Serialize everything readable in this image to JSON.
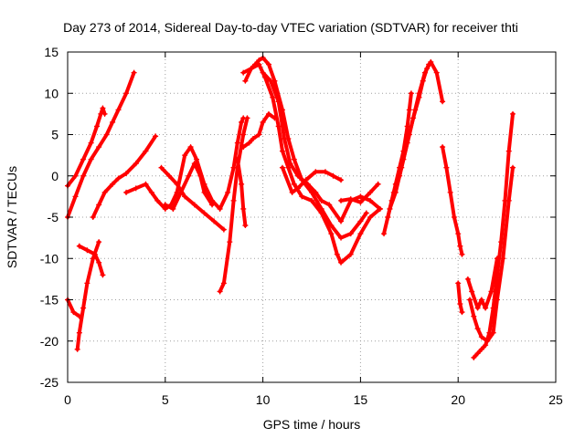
{
  "chart_data": {
    "type": "scatter",
    "title": "Day 273 of 2014, Sidereal Day-to-day VTEC variation (SDTVAR) for receiver thti",
    "xlabel": "GPS time / hours",
    "ylabel": "SDTVAR / TECUs",
    "xlim": [
      0,
      25
    ],
    "ylim": [
      -25,
      15
    ],
    "xticks": [
      0,
      5,
      10,
      15,
      20,
      25
    ],
    "yticks": [
      -25,
      -20,
      -15,
      -10,
      -5,
      0,
      5,
      10,
      15
    ],
    "grid": true,
    "marker": "plus",
    "color": "#ff0000",
    "tracks": [
      [
        [
          0.0,
          -1.2
        ],
        [
          0.4,
          0.0
        ],
        [
          0.8,
          2.0
        ],
        [
          1.2,
          4.0
        ],
        [
          1.5,
          6.0
        ],
        [
          1.7,
          7.5
        ],
        [
          1.8,
          8.2
        ],
        [
          1.9,
          7.5
        ]
      ],
      [
        [
          0.0,
          -5.0
        ],
        [
          0.4,
          -2.5
        ],
        [
          0.8,
          0.0
        ],
        [
          1.2,
          2.0
        ],
        [
          1.6,
          3.5
        ],
        [
          2.0,
          5.0
        ],
        [
          2.3,
          6.5
        ],
        [
          2.6,
          8.0
        ],
        [
          3.0,
          10.0
        ],
        [
          3.4,
          12.5
        ]
      ],
      [
        [
          0.0,
          -15.0
        ],
        [
          0.3,
          -16.5
        ],
        [
          0.6,
          -17.0
        ]
      ],
      [
        [
          0.5,
          -21.0
        ],
        [
          0.6,
          -19.0
        ],
        [
          0.8,
          -16.0
        ],
        [
          1.0,
          -13.0
        ],
        [
          1.3,
          -10.0
        ],
        [
          1.6,
          -8.0
        ]
      ],
      [
        [
          0.6,
          -8.5
        ],
        [
          1.0,
          -9.0
        ],
        [
          1.4,
          -9.5
        ],
        [
          1.6,
          -10.5
        ],
        [
          1.8,
          -12.0
        ]
      ],
      [
        [
          1.3,
          -5.0
        ],
        [
          1.6,
          -3.5
        ],
        [
          1.9,
          -2.0
        ],
        [
          2.3,
          -1.0
        ],
        [
          2.6,
          -0.3
        ],
        [
          3.0,
          0.3
        ],
        [
          3.5,
          1.5
        ],
        [
          4.0,
          3.0
        ],
        [
          4.5,
          4.8
        ]
      ],
      [
        [
          3.0,
          -2.0
        ],
        [
          3.5,
          -1.5
        ],
        [
          4.0,
          -1.0
        ],
        [
          4.3,
          -2.0
        ],
        [
          4.6,
          -3.0
        ],
        [
          5.0,
          -4.0
        ],
        [
          5.3,
          -3.5
        ],
        [
          5.6,
          -2.0
        ],
        [
          6.0,
          2.5
        ],
        [
          6.3,
          3.5
        ],
        [
          6.6,
          2.0
        ],
        [
          7.0,
          -1.0
        ],
        [
          7.4,
          -3.0
        ],
        [
          7.8,
          -4.0
        ],
        [
          8.2,
          -2.0
        ],
        [
          8.5,
          1.0
        ],
        [
          8.7,
          4.0
        ],
        [
          8.9,
          6.5
        ],
        [
          9.0,
          7.0
        ]
      ],
      [
        [
          4.8,
          1.0
        ],
        [
          5.2,
          0.0
        ],
        [
          5.6,
          -1.0
        ],
        [
          6.0,
          -2.5
        ],
        [
          6.5,
          -3.5
        ],
        [
          7.0,
          -4.5
        ],
        [
          7.5,
          -5.5
        ],
        [
          8.0,
          -6.5
        ]
      ],
      [
        [
          5.0,
          -3.5
        ],
        [
          5.4,
          -4.0
        ],
        [
          5.8,
          -2.0
        ],
        [
          6.2,
          0.0
        ],
        [
          6.5,
          1.5
        ],
        [
          6.8,
          0.0
        ],
        [
          7.0,
          -2.0
        ],
        [
          7.4,
          -3.5
        ]
      ],
      [
        [
          7.8,
          -14.0
        ],
        [
          8.0,
          -13.0
        ],
        [
          8.3,
          -8.0
        ],
        [
          8.5,
          -3.0
        ],
        [
          8.7,
          1.0
        ],
        [
          9.0,
          5.0
        ],
        [
          9.2,
          7.0
        ]
      ],
      [
        [
          8.7,
          2.0
        ],
        [
          8.9,
          -1.0
        ],
        [
          9.0,
          -4.0
        ],
        [
          9.1,
          -6.0
        ]
      ],
      [
        [
          9.0,
          3.5
        ],
        [
          9.3,
          4.0
        ],
        [
          9.5,
          4.5
        ],
        [
          9.8,
          5.0
        ],
        [
          10.0,
          6.5
        ],
        [
          10.3,
          7.5
        ],
        [
          10.6,
          7.0
        ]
      ],
      [
        [
          9.1,
          11.5
        ],
        [
          9.4,
          13.0
        ],
        [
          9.6,
          13.5
        ],
        [
          9.8,
          14.0
        ],
        [
          10.0,
          14.3
        ],
        [
          10.3,
          13.5
        ],
        [
          10.6,
          11.5
        ],
        [
          11.0,
          8.0
        ],
        [
          11.3,
          4.5
        ],
        [
          11.6,
          2.0
        ],
        [
          12.0,
          -0.5
        ],
        [
          12.5,
          -2.0
        ],
        [
          13.0,
          -4.0
        ],
        [
          13.5,
          -6.0
        ],
        [
          14.0,
          -7.5
        ],
        [
          14.5,
          -7.0
        ],
        [
          15.0,
          -5.5
        ],
        [
          15.3,
          -4.5
        ]
      ],
      [
        [
          9.0,
          12.5
        ],
        [
          9.4,
          13.0
        ],
        [
          9.8,
          13.5
        ],
        [
          10.1,
          12.0
        ],
        [
          10.5,
          9.5
        ],
        [
          10.8,
          6.0
        ],
        [
          11.0,
          3.0
        ],
        [
          11.3,
          1.0
        ],
        [
          11.6,
          -1.0
        ],
        [
          12.0,
          -2.5
        ],
        [
          12.5,
          -3.0
        ],
        [
          13.0,
          -4.5
        ],
        [
          13.5,
          -7.0
        ],
        [
          13.8,
          -9.5
        ],
        [
          14.0,
          -10.5
        ],
        [
          14.5,
          -9.5
        ],
        [
          15.0,
          -7.0
        ],
        [
          15.5,
          -5.0
        ],
        [
          16.0,
          -4.0
        ]
      ],
      [
        [
          10.0,
          12.5
        ],
        [
          10.4,
          11.5
        ],
        [
          10.8,
          9.0
        ],
        [
          11.1,
          4.5
        ],
        [
          11.4,
          1.5
        ],
        [
          11.8,
          0.0
        ],
        [
          12.3,
          -1.0
        ],
        [
          12.7,
          -2.0
        ],
        [
          13.0,
          -3.0
        ],
        [
          13.4,
          -3.5
        ],
        [
          14.0,
          -5.5
        ],
        [
          14.5,
          -3.0
        ],
        [
          15.0,
          -2.5
        ],
        [
          15.5,
          -3.0
        ],
        [
          16.0,
          -4.0
        ]
      ],
      [
        [
          11.0,
          1.0
        ],
        [
          11.5,
          -2.0
        ],
        [
          11.8,
          -1.5
        ],
        [
          12.2,
          -0.5
        ],
        [
          12.7,
          0.5
        ],
        [
          13.2,
          0.5
        ],
        [
          13.6,
          0.0
        ],
        [
          14.0,
          -0.5
        ]
      ],
      [
        [
          14.0,
          -3.0
        ],
        [
          14.5,
          -2.8
        ],
        [
          15.0,
          -3.2
        ],
        [
          15.5,
          -2.0
        ],
        [
          15.9,
          -1.0
        ]
      ],
      [
        [
          16.2,
          -7.0
        ],
        [
          16.4,
          -5.0
        ],
        [
          16.6,
          -3.0
        ],
        [
          16.8,
          -1.0
        ],
        [
          17.0,
          1.0
        ],
        [
          17.2,
          3.0
        ],
        [
          17.4,
          6.0
        ],
        [
          17.5,
          8.0
        ],
        [
          17.6,
          10.0
        ]
      ],
      [
        [
          16.4,
          -5.0
        ],
        [
          16.7,
          -2.0
        ],
        [
          17.0,
          0.0
        ],
        [
          17.2,
          2.0
        ],
        [
          17.5,
          5.0
        ],
        [
          17.8,
          8.0
        ],
        [
          18.0,
          10.0
        ],
        [
          18.3,
          12.5
        ],
        [
          18.6,
          13.8
        ],
        [
          18.9,
          12.5
        ],
        [
          19.2,
          9.0
        ]
      ],
      [
        [
          16.5,
          -4.0
        ],
        [
          16.8,
          -2.0
        ],
        [
          17.1,
          1.0
        ],
        [
          17.4,
          4.0
        ],
        [
          17.7,
          7.0
        ],
        [
          18.0,
          9.5
        ],
        [
          18.2,
          11.5
        ],
        [
          18.4,
          13.0
        ],
        [
          18.5,
          13.5
        ]
      ],
      [
        [
          19.2,
          3.5
        ],
        [
          19.4,
          1.0
        ],
        [
          19.6,
          -2.0
        ],
        [
          19.8,
          -5.0
        ],
        [
          20.0,
          -7.0
        ],
        [
          20.1,
          -8.5
        ],
        [
          20.2,
          -9.5
        ]
      ],
      [
        [
          20.0,
          -13.0
        ],
        [
          20.1,
          -15.5
        ],
        [
          20.2,
          -16.5
        ]
      ],
      [
        [
          20.5,
          -12.5
        ],
        [
          20.7,
          -14.0
        ],
        [
          21.0,
          -16.0
        ],
        [
          21.2,
          -15.0
        ],
        [
          21.4,
          -16.0
        ],
        [
          21.7,
          -14.0
        ],
        [
          22.0,
          -10.0
        ]
      ],
      [
        [
          20.6,
          -15.0
        ],
        [
          20.8,
          -17.0
        ],
        [
          21.0,
          -18.5
        ],
        [
          21.2,
          -19.5
        ],
        [
          21.5,
          -20.0
        ],
        [
          21.8,
          -19.0
        ],
        [
          22.0,
          -15.0
        ],
        [
          22.3,
          -10.0
        ],
        [
          22.6,
          -3.0
        ],
        [
          22.8,
          1.0
        ]
      ],
      [
        [
          20.8,
          -22.0
        ],
        [
          21.0,
          -21.5
        ],
        [
          21.2,
          -21.0
        ],
        [
          21.4,
          -20.5
        ],
        [
          21.6,
          -19.0
        ],
        [
          21.8,
          -16.0
        ],
        [
          22.0,
          -12.0
        ],
        [
          22.2,
          -8.0
        ],
        [
          22.4,
          -3.0
        ],
        [
          22.6,
          3.0
        ],
        [
          22.8,
          7.5
        ]
      ]
    ]
  }
}
